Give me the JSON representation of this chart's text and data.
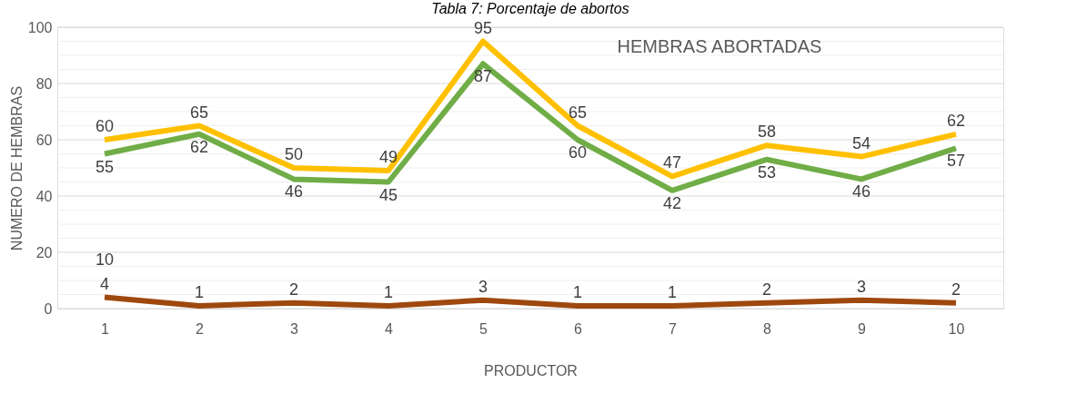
{
  "chart_data": {
    "type": "line",
    "title": "Tabla 7: Porcentaje de abortos",
    "xlabel": "PRODUCTOR",
    "ylabel": "NUMERO DE HEMBRAS",
    "categories": [
      "1",
      "2",
      "3",
      "4",
      "5",
      "6",
      "7",
      "8",
      "9",
      "10"
    ],
    "series": [
      {
        "color": "#9e480e",
        "values": [
          4,
          1,
          2,
          1,
          3,
          1,
          1,
          2,
          3,
          2
        ]
      },
      {
        "color": "#70ad47",
        "values": [
          55,
          62,
          46,
          45,
          87,
          60,
          42,
          53,
          46,
          57
        ]
      },
      {
        "color": "#ffc000",
        "values": [
          60,
          65,
          50,
          49,
          95,
          65,
          47,
          58,
          54,
          62
        ]
      }
    ],
    "ylim": [
      0,
      100
    ],
    "yticks": [
      0,
      {
        "value": 5,
        "label": null
      },
      {
        "value": 10,
        "label": null
      },
      {
        "value": 15,
        "label": null
      },
      20,
      {
        "value": 25,
        "label": null
      },
      {
        "value": 30,
        "label": null
      },
      {
        "value": 35,
        "label": null
      },
      40,
      {
        "value": 45,
        "label": null
      },
      {
        "value": 50,
        "label": null
      },
      {
        "value": 55,
        "label": null
      },
      60,
      {
        "value": 65,
        "label": null
      },
      {
        "value": 70,
        "label": null
      },
      {
        "value": 75,
        "label": null
      },
      80,
      {
        "value": 85,
        "label": null
      },
      {
        "value": 90,
        "label": null
      },
      {
        "value": 95,
        "label": null
      },
      100
    ],
    "grid": "y",
    "data_labels": true,
    "marker": "none",
    "line_style": "solid",
    "annotations": [
      "HEMBRAS ABORTADAS",
      "10"
    ]
  }
}
